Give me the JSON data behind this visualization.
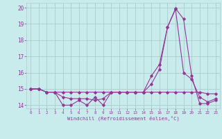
{
  "xlabel": "Windchill (Refroidissement éolien,°C)",
  "background_color": "#c8ecec",
  "line_color": "#993399",
  "grid_color": "#aacccc",
  "x_ticks": [
    0,
    1,
    2,
    3,
    4,
    5,
    6,
    7,
    8,
    9,
    10,
    11,
    12,
    13,
    14,
    15,
    16,
    17,
    18,
    19,
    20,
    21,
    22,
    23
  ],
  "ylim": [
    13.8,
    20.3
  ],
  "yticks": [
    14,
    15,
    16,
    17,
    18,
    19,
    20
  ],
  "series1_x": [
    0,
    1,
    2,
    3,
    4,
    5,
    6,
    7,
    8,
    9,
    10,
    11,
    12,
    13,
    14,
    15,
    16,
    17,
    18,
    19,
    20,
    21,
    22,
    23
  ],
  "series1_y": [
    15.0,
    15.0,
    14.8,
    14.8,
    14.0,
    14.0,
    14.3,
    14.0,
    14.5,
    14.0,
    14.8,
    14.8,
    14.8,
    14.8,
    14.8,
    15.8,
    16.5,
    18.8,
    19.95,
    19.3,
    15.8,
    14.1,
    14.1,
    14.3
  ],
  "series2_x": [
    0,
    1,
    2,
    3,
    4,
    5,
    6,
    7,
    8,
    9,
    10,
    11,
    12,
    13,
    14,
    15,
    16,
    17,
    18,
    19,
    20,
    21,
    22,
    23
  ],
  "series2_y": [
    15.0,
    15.0,
    14.8,
    14.8,
    14.8,
    14.8,
    14.8,
    14.8,
    14.8,
    14.8,
    14.8,
    14.8,
    14.8,
    14.8,
    14.8,
    14.8,
    14.8,
    14.8,
    14.8,
    14.8,
    14.8,
    14.8,
    14.7,
    14.7
  ],
  "series3_x": [
    0,
    1,
    2,
    3,
    4,
    5,
    6,
    7,
    8,
    9,
    10,
    11,
    12,
    13,
    14,
    15,
    16,
    17,
    18,
    19,
    20,
    21,
    22,
    23
  ],
  "series3_y": [
    15.0,
    15.0,
    14.8,
    14.8,
    14.5,
    14.4,
    14.4,
    14.4,
    14.3,
    14.4,
    14.8,
    14.8,
    14.8,
    14.8,
    14.8,
    15.3,
    16.2,
    18.8,
    19.9,
    16.0,
    15.6,
    14.5,
    14.2,
    14.4
  ]
}
